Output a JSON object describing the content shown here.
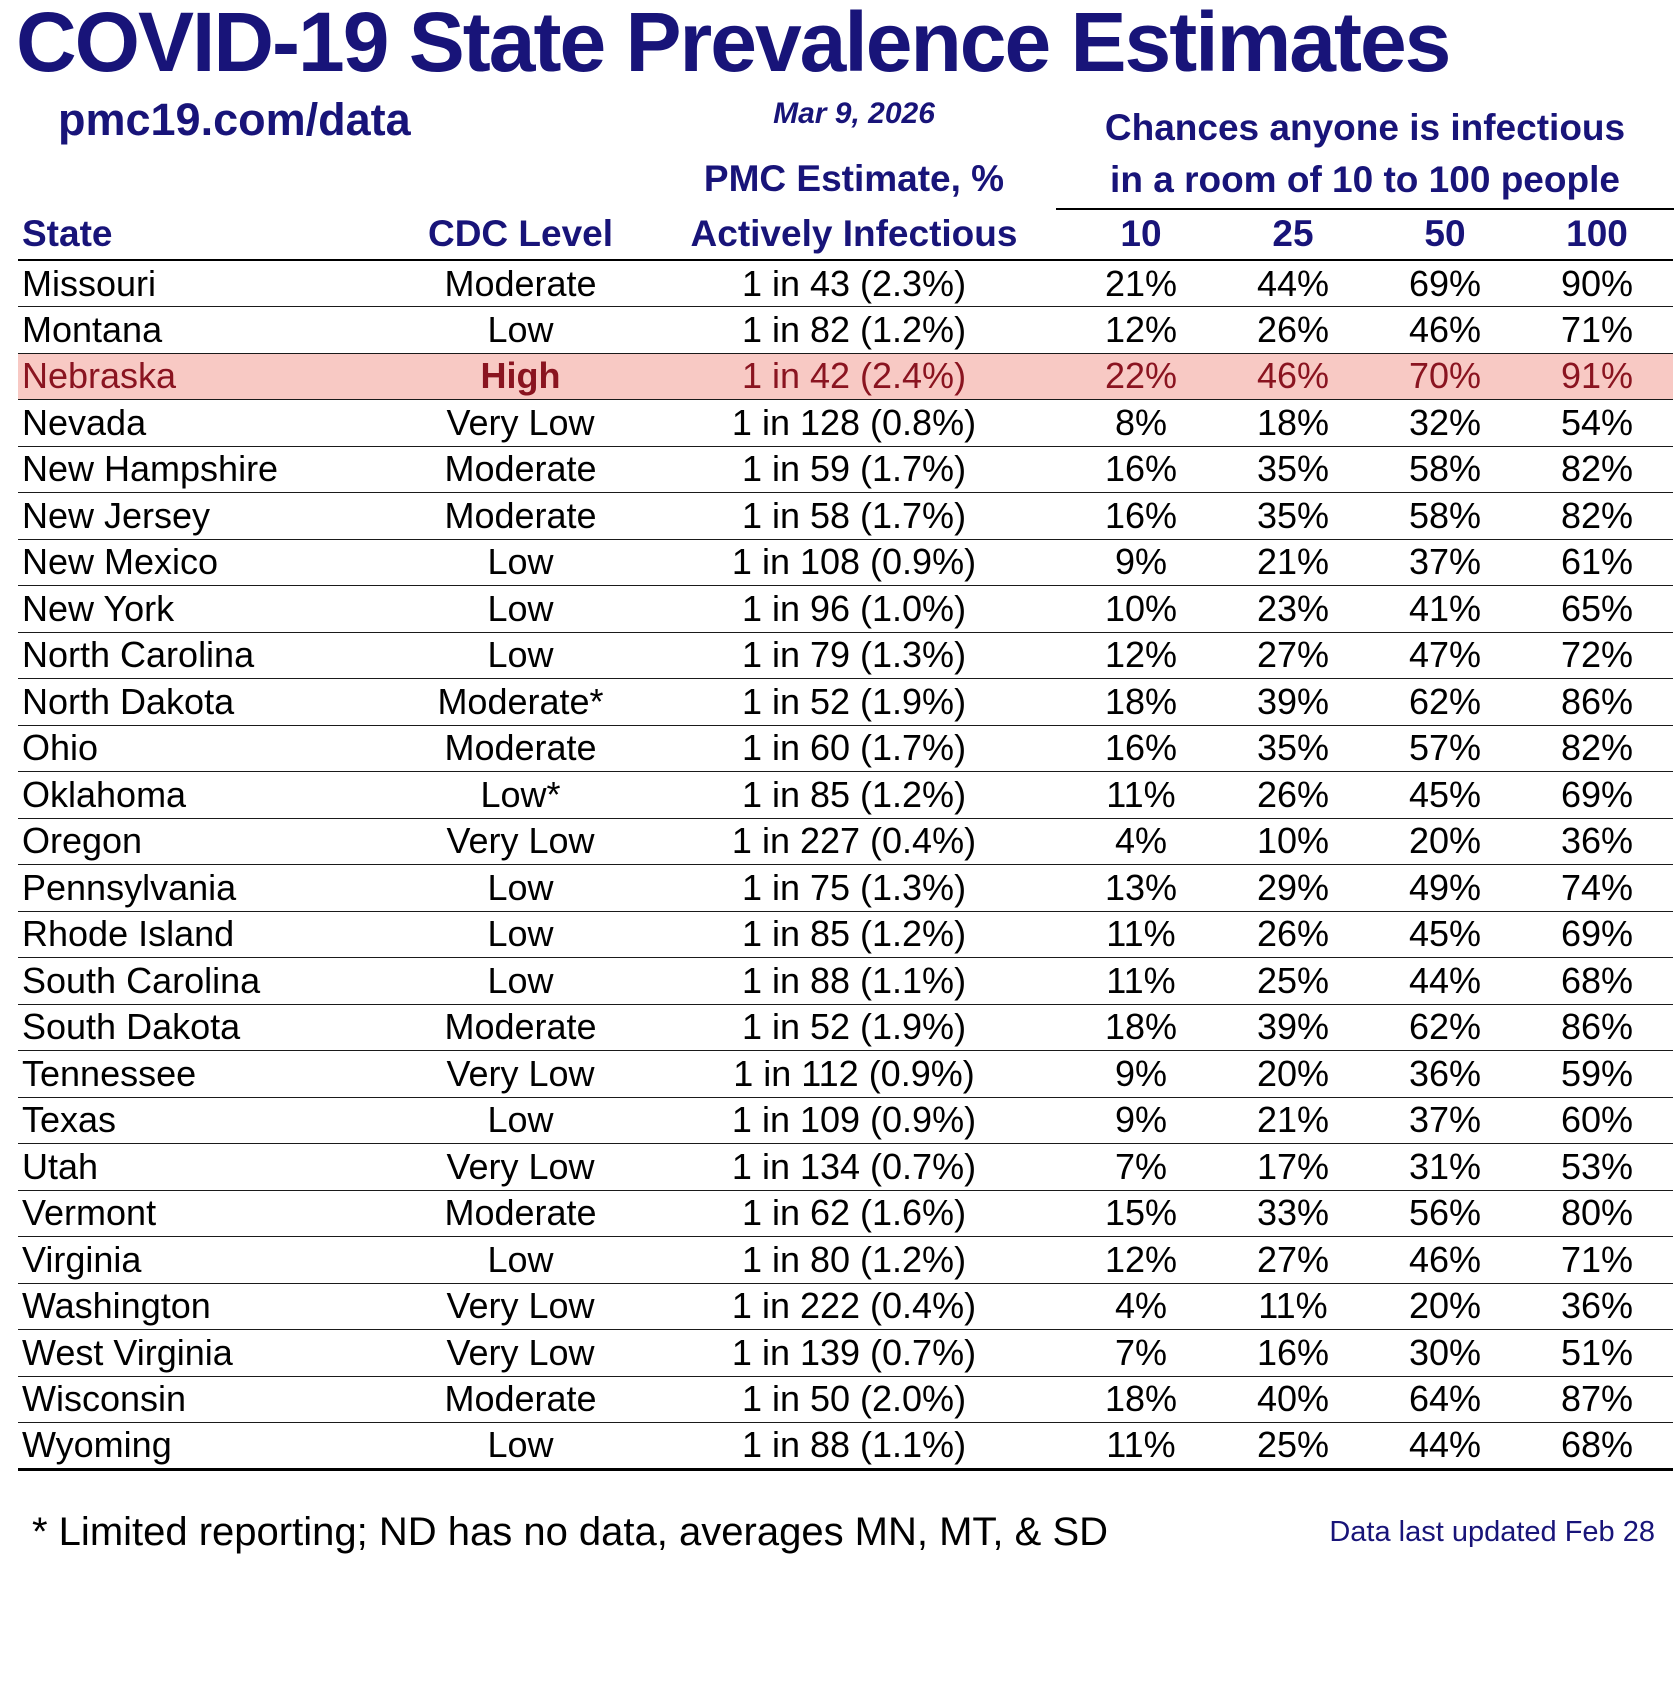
{
  "header": {
    "title": "COVID-19 State Prevalence Estimates",
    "source": "pmc19.com/data",
    "date": "Mar 9, 2026",
    "chances_line1": "Chances anyone is infectious",
    "chances_line2": "in a room of 10 to 100 people",
    "pmc_line1": "PMC Estimate, %",
    "pmc_line2": "Actively Infectious",
    "col_state": "State",
    "col_cdc": "CDC Level",
    "room_sizes": [
      "10",
      "25",
      "50",
      "100"
    ]
  },
  "chart_data": {
    "type": "table",
    "title": "COVID-19 State Prevalence Estimates",
    "columns": [
      "State",
      "CDC Level",
      "PMC Estimate, % Actively Infectious",
      "10",
      "25",
      "50",
      "100"
    ],
    "highlighted_state": "Nebraska",
    "rows": [
      {
        "state": "Missouri",
        "cdc_level": "Moderate",
        "pmc_estimate": "1 in 43 (2.3%)",
        "p10": "21%",
        "p25": "44%",
        "p50": "69%",
        "p100": "90%",
        "highlight": false
      },
      {
        "state": "Montana",
        "cdc_level": "Low",
        "pmc_estimate": "1 in 82 (1.2%)",
        "p10": "12%",
        "p25": "26%",
        "p50": "46%",
        "p100": "71%",
        "highlight": false
      },
      {
        "state": "Nebraska",
        "cdc_level": "High",
        "pmc_estimate": "1 in 42 (2.4%)",
        "p10": "22%",
        "p25": "46%",
        "p50": "70%",
        "p100": "91%",
        "highlight": true
      },
      {
        "state": "Nevada",
        "cdc_level": "Very Low",
        "pmc_estimate": "1 in 128 (0.8%)",
        "p10": "8%",
        "p25": "18%",
        "p50": "32%",
        "p100": "54%",
        "highlight": false
      },
      {
        "state": "New Hampshire",
        "cdc_level": "Moderate",
        "pmc_estimate": "1 in 59 (1.7%)",
        "p10": "16%",
        "p25": "35%",
        "p50": "58%",
        "p100": "82%",
        "highlight": false
      },
      {
        "state": "New Jersey",
        "cdc_level": "Moderate",
        "pmc_estimate": "1 in 58 (1.7%)",
        "p10": "16%",
        "p25": "35%",
        "p50": "58%",
        "p100": "82%",
        "highlight": false
      },
      {
        "state": "New Mexico",
        "cdc_level": "Low",
        "pmc_estimate": "1 in 108 (0.9%)",
        "p10": "9%",
        "p25": "21%",
        "p50": "37%",
        "p100": "61%",
        "highlight": false
      },
      {
        "state": "New York",
        "cdc_level": "Low",
        "pmc_estimate": "1 in 96 (1.0%)",
        "p10": "10%",
        "p25": "23%",
        "p50": "41%",
        "p100": "65%",
        "highlight": false
      },
      {
        "state": "North Carolina",
        "cdc_level": "Low",
        "pmc_estimate": "1 in 79 (1.3%)",
        "p10": "12%",
        "p25": "27%",
        "p50": "47%",
        "p100": "72%",
        "highlight": false
      },
      {
        "state": "North Dakota",
        "cdc_level": "Moderate*",
        "pmc_estimate": "1 in 52 (1.9%)",
        "p10": "18%",
        "p25": "39%",
        "p50": "62%",
        "p100": "86%",
        "highlight": false
      },
      {
        "state": "Ohio",
        "cdc_level": "Moderate",
        "pmc_estimate": "1 in 60 (1.7%)",
        "p10": "16%",
        "p25": "35%",
        "p50": "57%",
        "p100": "82%",
        "highlight": false
      },
      {
        "state": "Oklahoma",
        "cdc_level": "Low*",
        "pmc_estimate": "1 in 85 (1.2%)",
        "p10": "11%",
        "p25": "26%",
        "p50": "45%",
        "p100": "69%",
        "highlight": false
      },
      {
        "state": "Oregon",
        "cdc_level": "Very Low",
        "pmc_estimate": "1 in 227 (0.4%)",
        "p10": "4%",
        "p25": "10%",
        "p50": "20%",
        "p100": "36%",
        "highlight": false
      },
      {
        "state": "Pennsylvania",
        "cdc_level": "Low",
        "pmc_estimate": "1 in 75 (1.3%)",
        "p10": "13%",
        "p25": "29%",
        "p50": "49%",
        "p100": "74%",
        "highlight": false
      },
      {
        "state": "Rhode Island",
        "cdc_level": "Low",
        "pmc_estimate": "1 in 85 (1.2%)",
        "p10": "11%",
        "p25": "26%",
        "p50": "45%",
        "p100": "69%",
        "highlight": false
      },
      {
        "state": "South Carolina",
        "cdc_level": "Low",
        "pmc_estimate": "1 in 88 (1.1%)",
        "p10": "11%",
        "p25": "25%",
        "p50": "44%",
        "p100": "68%",
        "highlight": false
      },
      {
        "state": "South Dakota",
        "cdc_level": "Moderate",
        "pmc_estimate": "1 in 52 (1.9%)",
        "p10": "18%",
        "p25": "39%",
        "p50": "62%",
        "p100": "86%",
        "highlight": false
      },
      {
        "state": "Tennessee",
        "cdc_level": "Very Low",
        "pmc_estimate": "1 in 112 (0.9%)",
        "p10": "9%",
        "p25": "20%",
        "p50": "36%",
        "p100": "59%",
        "highlight": false
      },
      {
        "state": "Texas",
        "cdc_level": "Low",
        "pmc_estimate": "1 in 109 (0.9%)",
        "p10": "9%",
        "p25": "21%",
        "p50": "37%",
        "p100": "60%",
        "highlight": false
      },
      {
        "state": "Utah",
        "cdc_level": "Very Low",
        "pmc_estimate": "1 in 134 (0.7%)",
        "p10": "7%",
        "p25": "17%",
        "p50": "31%",
        "p100": "53%",
        "highlight": false
      },
      {
        "state": "Vermont",
        "cdc_level": "Moderate",
        "pmc_estimate": "1 in 62 (1.6%)",
        "p10": "15%",
        "p25": "33%",
        "p50": "56%",
        "p100": "80%",
        "highlight": false
      },
      {
        "state": "Virginia",
        "cdc_level": "Low",
        "pmc_estimate": "1 in 80 (1.2%)",
        "p10": "12%",
        "p25": "27%",
        "p50": "46%",
        "p100": "71%",
        "highlight": false
      },
      {
        "state": "Washington",
        "cdc_level": "Very Low",
        "pmc_estimate": "1 in 222 (0.4%)",
        "p10": "4%",
        "p25": "11%",
        "p50": "20%",
        "p100": "36%",
        "highlight": false
      },
      {
        "state": "West Virginia",
        "cdc_level": "Very Low",
        "pmc_estimate": "1 in 139 (0.7%)",
        "p10": "7%",
        "p25": "16%",
        "p50": "30%",
        "p100": "51%",
        "highlight": false
      },
      {
        "state": "Wisconsin",
        "cdc_level": "Moderate",
        "pmc_estimate": "1 in 50 (2.0%)",
        "p10": "18%",
        "p25": "40%",
        "p50": "64%",
        "p100": "87%",
        "highlight": false
      },
      {
        "state": "Wyoming",
        "cdc_level": "Low",
        "pmc_estimate": "1 in 88 (1.1%)",
        "p10": "11%",
        "p25": "25%",
        "p50": "44%",
        "p100": "68%",
        "highlight": false
      }
    ]
  },
  "footer": {
    "footnote": "* Limited reporting; ND has no data, averages MN, MT, & SD",
    "updated": "Data last updated Feb 28"
  },
  "colors": {
    "navy": "#181479",
    "highlight_bg": "#f8c9c4",
    "highlight_text": "#8a1420"
  }
}
